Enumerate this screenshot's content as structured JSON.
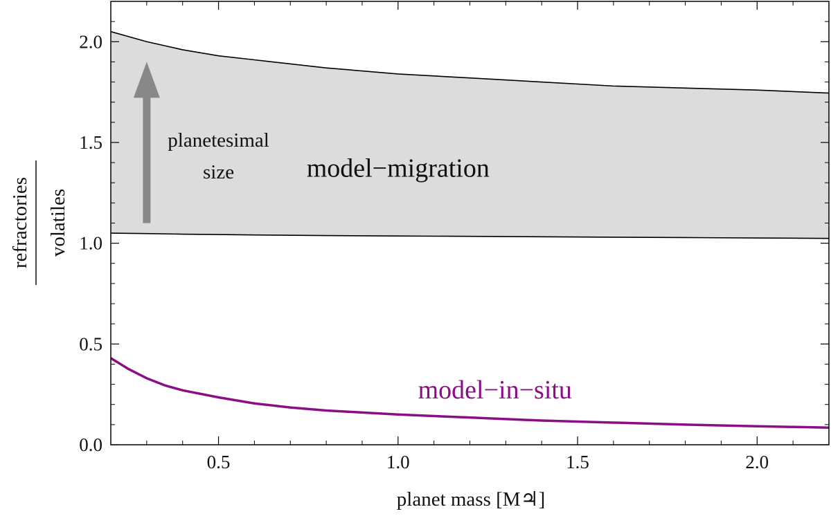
{
  "chart_data": {
    "type": "area",
    "xlabel": "planet mass [M♃]",
    "ylabel_numerator": "refractories",
    "ylabel_denominator": "volatiles",
    "xlim": [
      0.2,
      2.2
    ],
    "ylim": [
      0.0,
      2.2
    ],
    "x_ticks": [
      0.5,
      1.0,
      1.5,
      2.0
    ],
    "x_tick_labels": [
      "0.5",
      "1.0",
      "1.5",
      "2.0"
    ],
    "y_ticks": [
      0.0,
      0.5,
      1.0,
      1.5,
      2.0
    ],
    "y_tick_labels": [
      "0.0",
      "0.5",
      "1.0",
      "1.5",
      "2.0"
    ],
    "grid": false,
    "series": [
      {
        "name": "model-migration",
        "kind": "band",
        "fill": "#dcdcdc",
        "x": [
          0.2,
          0.3,
          0.4,
          0.5,
          0.6,
          0.8,
          1.0,
          1.2,
          1.4,
          1.6,
          1.8,
          2.0,
          2.2
        ],
        "upper": [
          2.05,
          2.0,
          1.96,
          1.93,
          1.91,
          1.87,
          1.84,
          1.82,
          1.8,
          1.78,
          1.77,
          1.76,
          1.745
        ],
        "lower": [
          1.05,
          1.048,
          1.045,
          1.043,
          1.041,
          1.038,
          1.036,
          1.034,
          1.032,
          1.03,
          1.028,
          1.026,
          1.024
        ]
      },
      {
        "name": "model-in-situ",
        "kind": "line",
        "color": "#8b0e86",
        "x": [
          0.2,
          0.25,
          0.3,
          0.35,
          0.4,
          0.5,
          0.6,
          0.7,
          0.8,
          1.0,
          1.2,
          1.4,
          1.6,
          1.8,
          2.0,
          2.2
        ],
        "y": [
          0.43,
          0.375,
          0.33,
          0.295,
          0.27,
          0.235,
          0.205,
          0.185,
          0.17,
          0.15,
          0.135,
          0.12,
          0.11,
          0.1,
          0.092,
          0.085
        ]
      }
    ],
    "annotations": [
      {
        "text": "model−migration",
        "x": 1.0,
        "y": 1.33,
        "color": "#111111"
      },
      {
        "text": "model−in−situ",
        "x": 1.27,
        "y": 0.23,
        "color": "#8b0e86"
      },
      {
        "text_line1": "planetesimal",
        "text_line2": "size",
        "x": 0.5,
        "y": 1.48,
        "color": "#111111"
      }
    ],
    "arrow": {
      "x": 0.3,
      "y_start": 1.1,
      "y_end": 1.9,
      "color": "#888888"
    }
  }
}
